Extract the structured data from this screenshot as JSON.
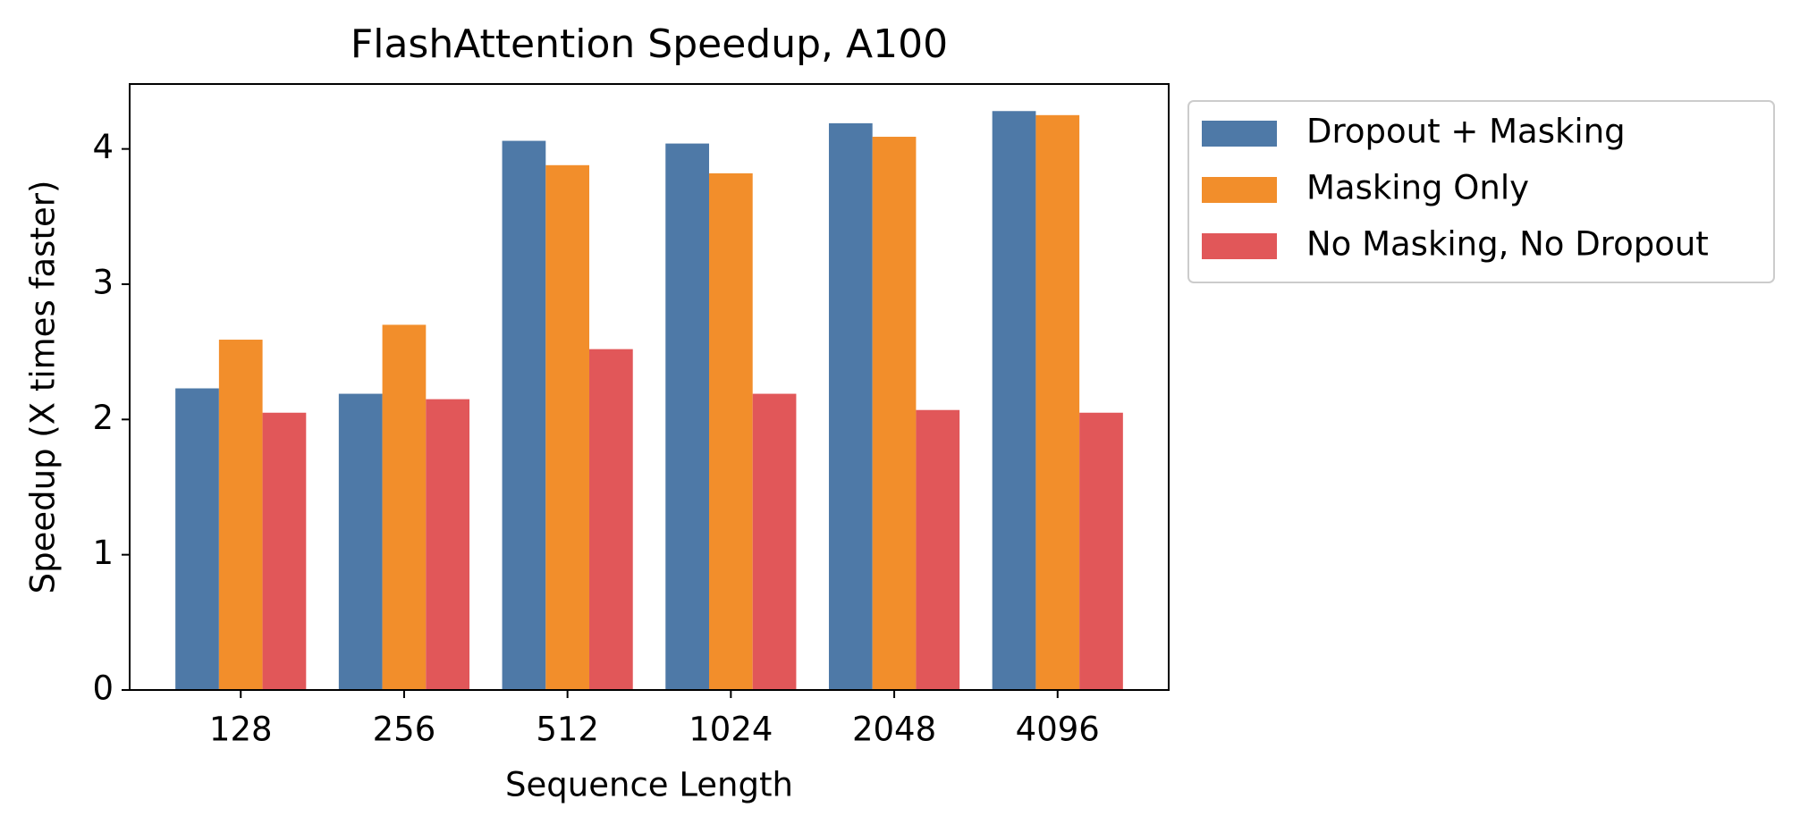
{
  "chart_data": {
    "type": "bar",
    "title": "FlashAttention Speedup, A100",
    "x_label": "Sequence Length",
    "y_label": "Speedup (X times faster)",
    "categories": [
      "128",
      "256",
      "512",
      "1024",
      "2048",
      "4096"
    ],
    "series": [
      {
        "name": "Dropout + Masking",
        "color": "#4e79a7",
        "values": [
          2.23,
          2.19,
          4.06,
          4.04,
          4.19,
          4.28
        ]
      },
      {
        "name": "Masking Only",
        "color": "#f28e2b",
        "values": [
          2.59,
          2.7,
          3.88,
          3.82,
          4.09,
          4.25
        ]
      },
      {
        "name": "No Masking, No Dropout",
        "color": "#e15759",
        "values": [
          2.05,
          2.15,
          2.52,
          2.19,
          2.07,
          2.05
        ]
      }
    ],
    "ylim": [
      0,
      4.48
    ],
    "yticks": [
      0,
      1,
      2,
      3,
      4
    ],
    "grid": false,
    "legend": "outside-upper-right"
  }
}
